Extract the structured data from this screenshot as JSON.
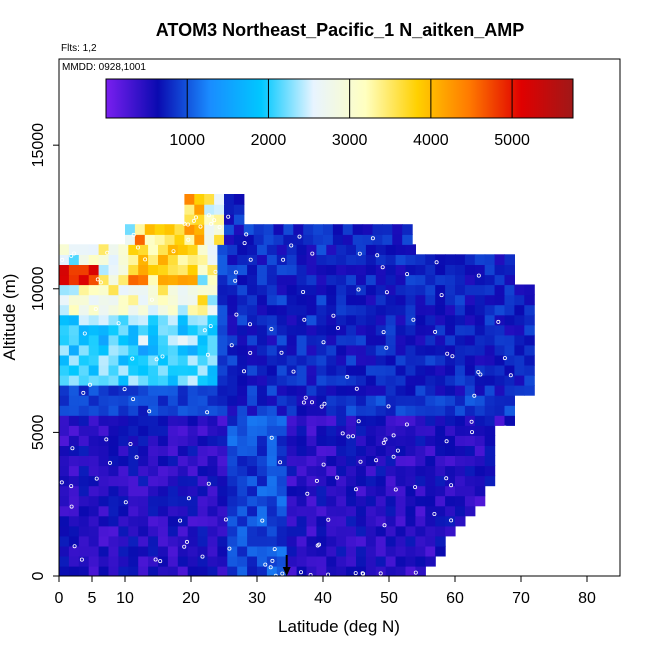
{
  "chart_data": {
    "type": "heatmap",
    "title": "ATOM3 Northeast_Pacific_1 N_aitken_AMP",
    "flights_label": "Flts: 1,2",
    "date_label": "MMDD: 0928,1001",
    "xlabel": "Latitude (deg N)",
    "ylabel": "Altitude (m)",
    "xlim": [
      0,
      85
    ],
    "ylim": [
      0,
      18000
    ],
    "x_ticks": [
      0,
      5,
      10,
      20,
      30,
      40,
      50,
      60,
      70,
      80
    ],
    "y_ticks": [
      0,
      5000,
      10000,
      15000
    ],
    "colorbar": {
      "ticks": [
        1000,
        2000,
        3000,
        4000,
        5000
      ],
      "range": [
        0,
        5750
      ],
      "colors": [
        "#7a1ff0",
        "#0a0ab0",
        "#1a8cff",
        "#00c8ff",
        "#e8f4ff",
        "#ffffc0",
        "#ffd000",
        "#ff7a00",
        "#e00000",
        "#a01818"
      ]
    },
    "marker": {
      "latitude": 34.5,
      "label": "arrow"
    },
    "grid": false,
    "legend_placement": "top (inside plot)"
  }
}
